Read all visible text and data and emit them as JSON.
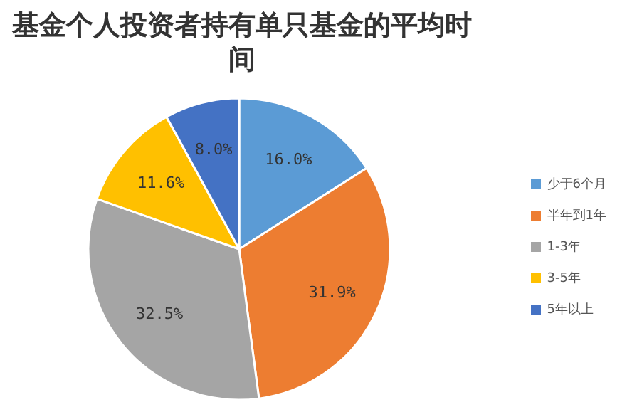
{
  "chart_data": {
    "type": "pie",
    "title": "基金个人投资者持有单只基金的平均时间",
    "categories": [
      "少于6个月",
      "半年到1年",
      "1-3年",
      "3-5年",
      "5年以上"
    ],
    "values": [
      16.0,
      31.9,
      32.5,
      11.6,
      8.0
    ],
    "colors": [
      "#5b9bd5",
      "#ed7d31",
      "#a5a5a5",
      "#ffc000",
      "#4472c4"
    ],
    "value_labels": [
      "16.0%",
      "31.9%",
      "32.5%",
      "11.6%",
      "8.0%"
    ],
    "legend": "right"
  }
}
